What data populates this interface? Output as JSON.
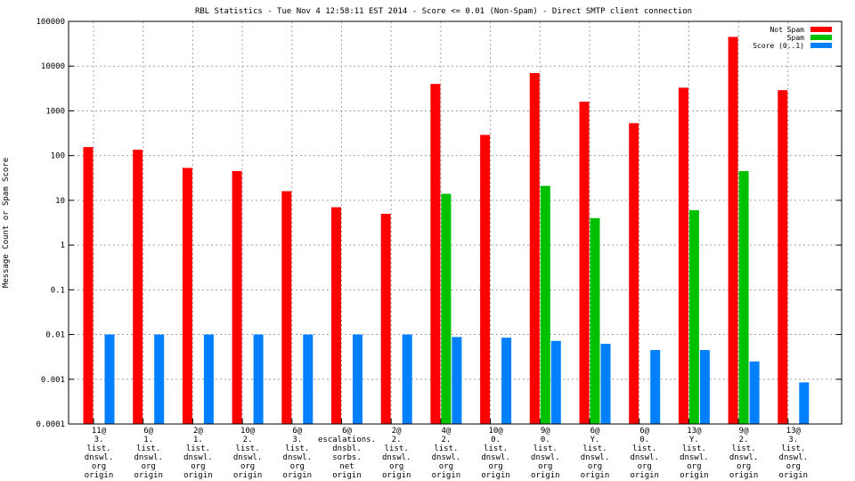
{
  "chart_data": {
    "type": "bar",
    "title": "RBL Statistics - Tue Nov  4 12:58:11 EST 2014 - Score <= 0.01 (Non-Spam) - Direct SMTP client connection",
    "xlabel": "",
    "ylabel": "Message Count or Spam Score",
    "yscale": "log",
    "ylim": [
      0.0001,
      100000
    ],
    "yticks": [
      "0.0001",
      "0.001",
      "0.01",
      "0.1",
      "1",
      "10",
      "100",
      "1000",
      "10000",
      "100000"
    ],
    "grid": true,
    "legend_position": "top-right",
    "categories": [
      [
        "11@",
        "3.",
        "list.",
        "dnswl.",
        "org",
        "origin"
      ],
      [
        "6@",
        "1.",
        "list.",
        "dnswl.",
        "org",
        "origin"
      ],
      [
        "2@",
        "1.",
        "list.",
        "dnswl.",
        "org",
        "origin"
      ],
      [
        "10@",
        "2.",
        "list.",
        "dnswl.",
        "org",
        "origin"
      ],
      [
        "6@",
        "3.",
        "list.",
        "dnswl.",
        "org",
        "origin"
      ],
      [
        "6@",
        "escalations.",
        "dnsbl.",
        "sorbs.",
        "net",
        "origin"
      ],
      [
        "2@",
        "2.",
        "list.",
        "dnswl.",
        "org",
        "origin"
      ],
      [
        "4@",
        "2.",
        "list.",
        "dnswl.",
        "org",
        "origin"
      ],
      [
        "10@",
        "0.",
        "list.",
        "dnswl.",
        "org",
        "origin"
      ],
      [
        "9@",
        "0.",
        "list.",
        "dnswl.",
        "org",
        "origin"
      ],
      [
        "6@",
        "Y.",
        "list.",
        "dnswl.",
        "org",
        "origin"
      ],
      [
        "6@",
        "0.",
        "list.",
        "dnswl.",
        "org",
        "origin"
      ],
      [
        "13@",
        "Y.",
        "list.",
        "dnswl.",
        "org",
        "origin"
      ],
      [
        "9@",
        "2.",
        "list.",
        "dnswl.",
        "org",
        "origin"
      ],
      [
        "13@",
        "3.",
        "list.",
        "dnswl.",
        "org",
        "origin"
      ]
    ],
    "series": [
      {
        "name": "Not Spam",
        "color": "#ff0000",
        "values": [
          155,
          135,
          53,
          45,
          16,
          7,
          5,
          4000,
          290,
          7000,
          1600,
          530,
          3300,
          45000,
          2900
        ]
      },
      {
        "name": "Spam",
        "color": "#00c000",
        "values": [
          null,
          null,
          null,
          null,
          null,
          null,
          null,
          14,
          null,
          21,
          4,
          null,
          6,
          45,
          null
        ]
      },
      {
        "name": "Score (0..1)",
        "color": "#0080ff",
        "values": [
          0.01,
          0.01,
          0.01,
          0.01,
          0.01,
          0.01,
          0.01,
          0.0088,
          0.0085,
          0.0072,
          0.0062,
          0.0045,
          0.0045,
          0.0025,
          0.00085
        ]
      }
    ]
  }
}
